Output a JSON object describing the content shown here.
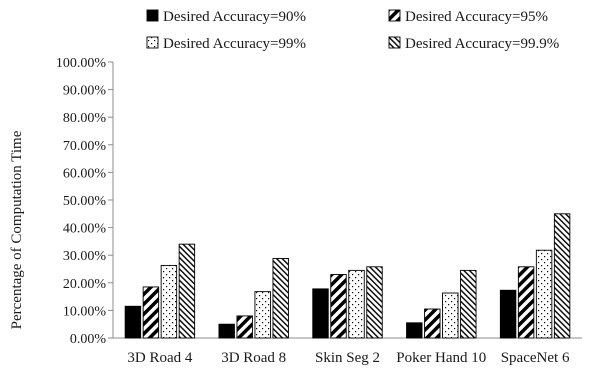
{
  "chart_data": {
    "type": "bar",
    "title": "",
    "xlabel": "",
    "ylabel": "Percentage of Computation Time",
    "ylim": [
      0,
      100
    ],
    "y_tick_format": "percent_2dp",
    "y_ticks": [
      "0.00%",
      "10.00%",
      "20.00%",
      "30.00%",
      "40.00%",
      "50.00%",
      "60.00%",
      "70.00%",
      "80.00%",
      "90.00%",
      "100.00%"
    ],
    "categories": [
      "3D Road 4",
      "3D Road 8",
      "Skin Seg 2",
      "Poker Hand 10",
      "SpaceNet 6"
    ],
    "legend_position": "top",
    "grid": false,
    "series": [
      {
        "name": "Desired Accuracy=90%",
        "pattern": "solid-black",
        "values": [
          11.5,
          5.0,
          17.8,
          5.5,
          17.3
        ]
      },
      {
        "name": "Desired Accuracy=95%",
        "pattern": "diagonal-stripes",
        "values": [
          18.5,
          8.0,
          23.0,
          10.5,
          25.8
        ]
      },
      {
        "name": "Desired Accuracy=99%",
        "pattern": "dots",
        "values": [
          26.3,
          16.8,
          24.5,
          16.3,
          31.8
        ]
      },
      {
        "name": "Desired Accuracy=99.9%",
        "pattern": "fine-hatch",
        "values": [
          34.0,
          28.8,
          25.8,
          24.5,
          45.0
        ]
      }
    ]
  }
}
